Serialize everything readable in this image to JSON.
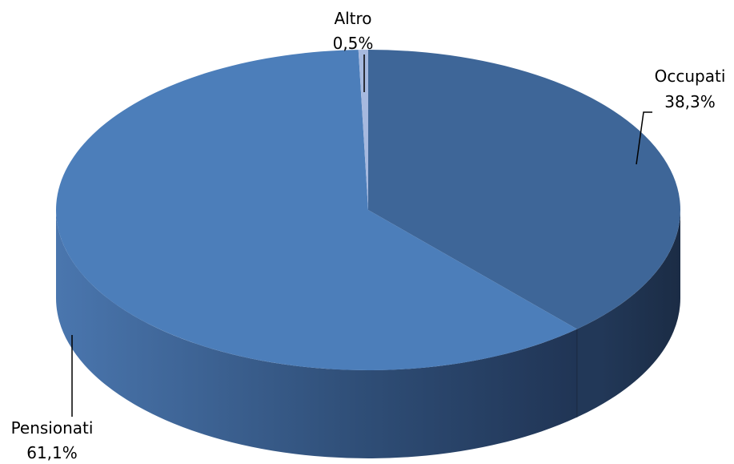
{
  "chart_data": {
    "type": "pie",
    "style": "3d",
    "legend": "none",
    "slices": [
      {
        "name": "Occupati",
        "value": 38.3,
        "label": "38,3%",
        "color": "#3E6698"
      },
      {
        "name": "Pensionati",
        "value": 61.1,
        "label": "61,1%",
        "color": "#4C7EBA"
      },
      {
        "name": "Altro",
        "value": 0.5,
        "label": "0,5%",
        "color": "#A6B9DF"
      }
    ]
  }
}
